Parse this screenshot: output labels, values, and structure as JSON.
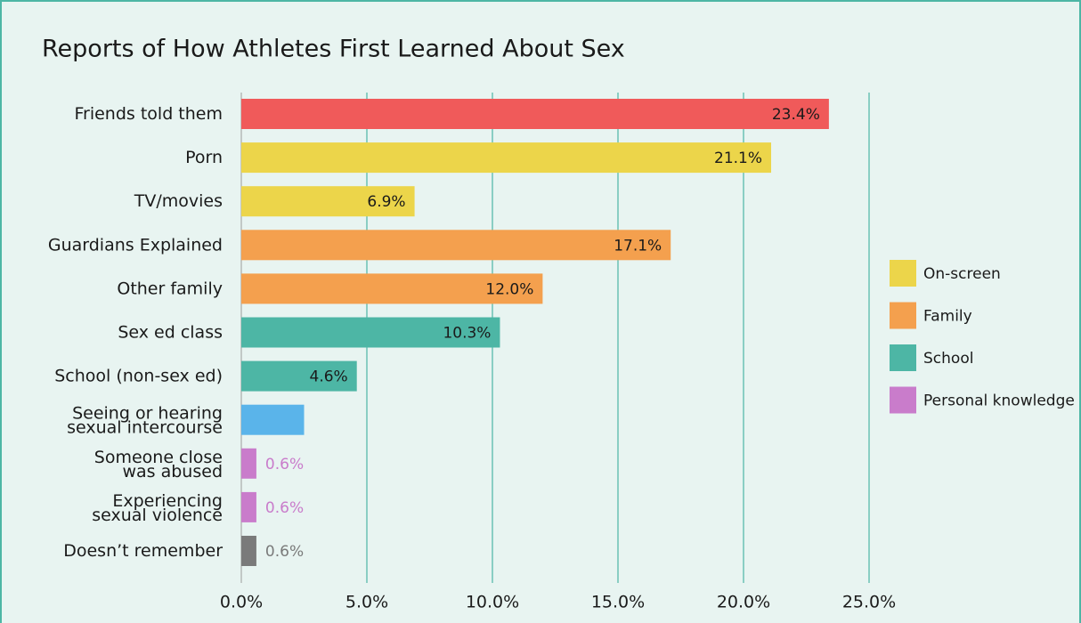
{
  "chart_data": {
    "type": "bar",
    "orientation": "horizontal",
    "title": "Reports of How Athletes First Learned About Sex",
    "categories": [
      [
        "Friends told them"
      ],
      [
        "Porn"
      ],
      [
        "TV/movies"
      ],
      [
        "Guardians Explained"
      ],
      [
        "Other family"
      ],
      [
        "Sex ed class"
      ],
      [
        "School (non-sex ed)"
      ],
      [
        "Seeing or hearing",
        "sexual intercourse"
      ],
      [
        "Someone close",
        "was abused"
      ],
      [
        "Experiencing",
        "sexual violence"
      ],
      [
        "Doesn’t remember"
      ]
    ],
    "values": [
      23.4,
      21.1,
      6.9,
      17.1,
      12.0,
      10.3,
      4.6,
      2.5,
      0.6,
      0.6,
      0.6
    ],
    "value_labels": [
      "23.4%",
      "21.1%",
      "6.9%",
      "17.1%",
      "12.0%",
      "10.3%",
      "4.6%",
      null,
      "0.6%",
      "0.6%",
      "0.6%"
    ],
    "colors": [
      "#f05a5a",
      "#ecd54a",
      "#ecd54a",
      "#f4a04e",
      "#f4a04e",
      "#4db6a5",
      "#4db6a5",
      "#5ab4ea",
      "#c97ccb",
      "#c97ccb",
      "#7a7a7a"
    ],
    "xlim": [
      0,
      25
    ],
    "xticks": [
      {
        "value": 0,
        "label": "0.0%"
      },
      {
        "value": 5,
        "label": "5.0%"
      },
      {
        "value": 10,
        "label": "10.0%"
      },
      {
        "value": 15,
        "label": "15.0%"
      },
      {
        "value": 20,
        "label": "20.0%"
      },
      {
        "value": 25,
        "label": "25.0%"
      }
    ],
    "grid": true,
    "legend": [
      {
        "name": "On-screen",
        "color": "#ecd54a"
      },
      {
        "name": "Family",
        "color": "#f4a04e"
      },
      {
        "name": "School",
        "color": "#4db6a5"
      },
      {
        "name": "Personal knowledge",
        "color": "#c97ccb"
      }
    ],
    "legend_position": "right"
  }
}
